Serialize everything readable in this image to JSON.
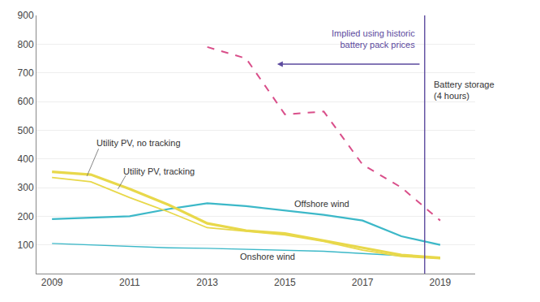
{
  "chart_data": {
    "type": "line",
    "x": [
      2009,
      2010,
      2011,
      2012,
      2013,
      2014,
      2015,
      2016,
      2017,
      2018,
      2019
    ],
    "series": [
      {
        "name": "Onshore wind",
        "color": "#3cb8c8",
        "values": [
          105,
          100,
          95,
          90,
          88,
          85,
          82,
          78,
          70,
          62,
          55
        ]
      },
      {
        "name": "Offshore wind",
        "color": "#3cb8c8",
        "values": [
          190,
          195,
          200,
          225,
          245,
          235,
          220,
          205,
          185,
          130,
          100
        ]
      },
      {
        "name": "Utility PV, no tracking",
        "color": "#e8d84a",
        "values": [
          355,
          345,
          295,
          240,
          175,
          150,
          140,
          115,
          88,
          65,
          55
        ]
      },
      {
        "name": "Utility PV, tracking",
        "color": "#e8d84a",
        "values": [
          335,
          320,
          265,
          215,
          160,
          148,
          135,
          112,
          82,
          60,
          52
        ]
      },
      {
        "name": "Battery storage\n(4 hours)",
        "color": "#d94f8a",
        "line_style": "dashed",
        "x": [
          2013,
          2014,
          2015,
          2016,
          2017,
          2018,
          2019
        ],
        "values": [
          790,
          750,
          555,
          565,
          380,
          300,
          185
        ]
      }
    ],
    "annotations": [
      {
        "text": "Implied using historic\nbattery pack prices",
        "x": 2018.6,
        "color": "#5c4a9e"
      }
    ],
    "xlim": [
      2008.6,
      2019.9
    ],
    "xticks": [
      2009,
      2011,
      2013,
      2015,
      2017,
      2019
    ],
    "ylim": [
      0,
      900
    ],
    "yticks": [
      100,
      200,
      300,
      400,
      500,
      600,
      700,
      800,
      900
    ],
    "grid": true
  }
}
